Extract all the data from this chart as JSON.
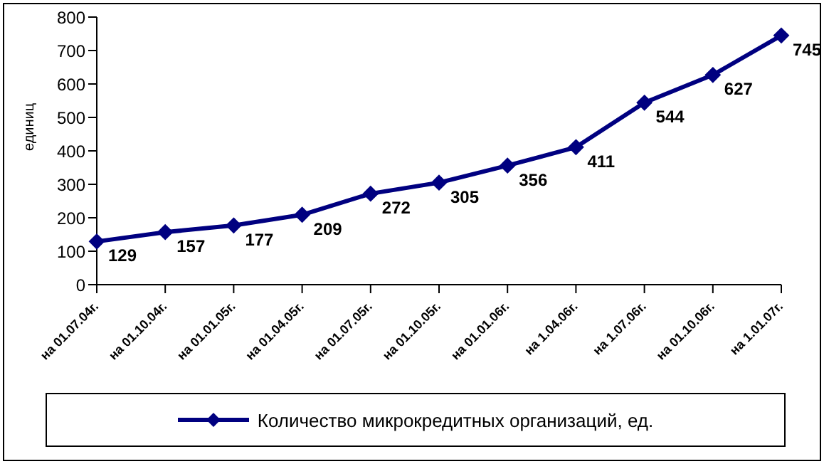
{
  "chart_data": {
    "type": "line",
    "ylabel": "единиц",
    "categories": [
      "на 01.07.04г.",
      "на 01.10.04г.",
      "на 01.01.05г.",
      "на 01.04.05г.",
      "на 01.07.05г.",
      "на 01.10.05г.",
      "на 01.01.06г.",
      "на 1.04.06г.",
      "на 1.07.06г.",
      "на 01.10.06г.",
      "на 1.01.07г."
    ],
    "series": [
      {
        "name": "Количество микрокредитных организаций, ед.",
        "color": "#000080",
        "values": [
          129,
          157,
          177,
          209,
          272,
          305,
          356,
          411,
          544,
          627,
          745
        ]
      }
    ],
    "ylim": [
      0,
      800
    ],
    "yticks": [
      0,
      100,
      200,
      300,
      400,
      500,
      600,
      700,
      800
    ],
    "grid": false,
    "legend": "bottom",
    "marker": "diamond",
    "line_style": "solid",
    "data_labels": true
  }
}
